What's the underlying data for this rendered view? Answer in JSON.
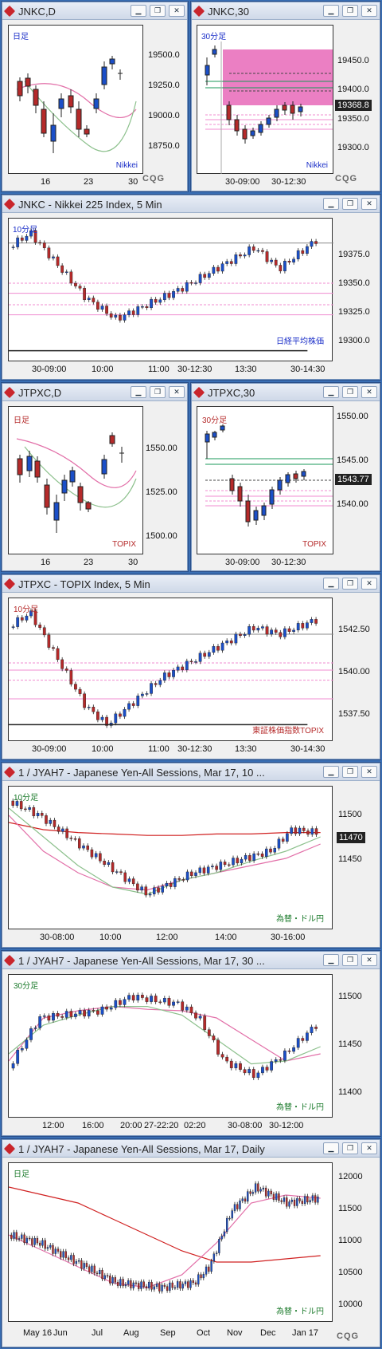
{
  "colors": {
    "up": "#1b4fc8",
    "down": "#b52a2a",
    "ma_pink": "#e26fa8",
    "ma_green": "#8cc08c",
    "ma_red": "#d02020",
    "hline_pink": "#f08cd0",
    "hline_green": "#1a9a5a",
    "highlight": "#e868b8"
  },
  "windows": [
    {
      "title": "JNKC,D",
      "tag": "日足",
      "series_label": "Nikkei",
      "y_ticks": [
        "19500.0",
        "19250.0",
        "19000.0",
        "18750.0"
      ],
      "x_ticks": [
        "16",
        "23",
        "30"
      ],
      "logo": "CQG"
    },
    {
      "title": "JNKC,30",
      "tag": "30分足",
      "series_label": "Nikkei",
      "y_ticks": [
        "19450.0",
        "19400.0",
        "19350.0",
        "19300.0"
      ],
      "price_badge": "19368.8",
      "x_ticks": [
        "30-09:00",
        "30-12:30"
      ],
      "logo": "CQG"
    },
    {
      "title": "JNKC - Nikkei 225 Index, 5 Min",
      "tag": "10分足",
      "series_label": "日経平均株価",
      "y_ticks": [
        "19375.0",
        "19350.0",
        "19325.0",
        "19300.0"
      ],
      "x_ticks": [
        "30-09:00",
        "10:00",
        "11:00",
        "30-12:30",
        "13:30",
        "30-14:30"
      ]
    },
    {
      "title": "JTPXC,D",
      "tag": "日足",
      "series_label": "TOPIX",
      "y_ticks": [
        "1550.00",
        "1525.00",
        "1500.00"
      ],
      "x_ticks": [
        "16",
        "23",
        "30"
      ]
    },
    {
      "title": "JTPXC,30",
      "tag": "30分足",
      "series_label": "TOPIX",
      "y_ticks": [
        "1550.00",
        "1545.00",
        "1540.00"
      ],
      "price_badge": "1543.77",
      "x_ticks": [
        "30-09:00",
        "30-12:30"
      ]
    },
    {
      "title": "JTPXC - TOPIX Index, 5 Min",
      "tag": "10分足",
      "series_label": "東証株価指数TOPIX",
      "y_ticks": [
        "1542.50",
        "1540.00",
        "1537.50"
      ],
      "x_ticks": [
        "30-09:00",
        "10:00",
        "11:00",
        "30-12:30",
        "13:30",
        "30-14:30"
      ]
    },
    {
      "title": "1 / JYAH7 - Japanese Yen-All Sessions, Mar 17, 10 ...",
      "tag": "10分足",
      "series_label": "為替・ドル円",
      "y_ticks": [
        "11500",
        "11450"
      ],
      "price_badge": "11470",
      "x_ticks": [
        "30-08:00",
        "10:00",
        "12:00",
        "14:00",
        "30-16:00"
      ]
    },
    {
      "title": "1 / JYAH7 - Japanese Yen-All Sessions, Mar 17, 30 ...",
      "tag": "30分足",
      "series_label": "為替・ドル円",
      "y_ticks": [
        "11500",
        "11450",
        "11400"
      ],
      "x_ticks": [
        "12:00",
        "16:00",
        "20:00",
        "27-22:20",
        "02:20",
        "30-08:00",
        "30-12:00"
      ]
    },
    {
      "title": "1 / JYAH7 - Japanese Yen-All Sessions, Mar 17, Daily",
      "tag": "日足",
      "series_label": "為替・ドル円",
      "y_ticks": [
        "12000",
        "11500",
        "11000",
        "10500",
        "10000"
      ],
      "x_ticks": [
        "May 16",
        "Jun",
        "Jul",
        "Aug",
        "Sep",
        "Oct",
        "Nov",
        "Dec",
        "Jan 17"
      ],
      "logo": "CQG"
    }
  ]
}
